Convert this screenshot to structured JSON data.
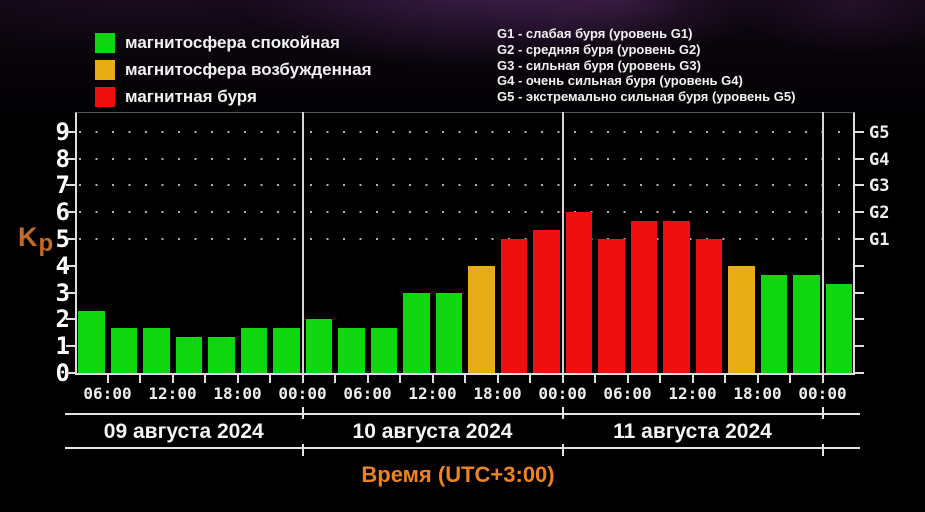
{
  "legend": {
    "items": [
      {
        "id": "calm",
        "label": "магнитосфера спокойная",
        "color": "#0fd60f"
      },
      {
        "id": "excited",
        "label": "магнитосфера возбужденная",
        "color": "#e8ac16"
      },
      {
        "id": "storm",
        "label": "магнитная буря",
        "color": "#ee1010"
      }
    ]
  },
  "storm_scale": {
    "lines": [
      "G1 - слабая буря (уровень G1)",
      "G2 - средняя буря (уровень G2)",
      "G3 - сильная буря (уровень G3)",
      "G4 - очень сильная буря (уровень G4)",
      "G5 - экстремально сильная буря (уровень G5)"
    ]
  },
  "chart_data": {
    "type": "bar",
    "ylabel": "Kp",
    "xlabel": "Время (UTC+3:00)",
    "ylim": [
      0,
      9.75
    ],
    "yticks": [
      0,
      1,
      2,
      3,
      4,
      5,
      6,
      7,
      8,
      9
    ],
    "right_axis": {
      "labels": [
        "G1",
        "G2",
        "G3",
        "G4",
        "G5"
      ],
      "levels": [
        5,
        6,
        7,
        8,
        9
      ]
    },
    "dotted_levels": [
      5,
      6,
      7,
      8,
      9
    ],
    "grid": "dotted-top-levels-only",
    "legend_position": "top-left",
    "bar_duration_hours": 3,
    "first_bar_start": "03:00",
    "time_tick_labels": [
      "06:00",
      "12:00",
      "18:00",
      "00:00",
      "06:00",
      "12:00",
      "18:00",
      "00:00",
      "06:00",
      "12:00",
      "18:00",
      "00:00"
    ],
    "state_colors": {
      "calm": "#0fd60f",
      "excited": "#e8ac16",
      "storm": "#ee1010"
    },
    "days": [
      {
        "date": "09 августа 2024",
        "bars": [
          {
            "start": "03:00",
            "value": 2.33,
            "state": "calm"
          },
          {
            "start": "06:00",
            "value": 1.67,
            "state": "calm"
          },
          {
            "start": "09:00",
            "value": 1.67,
            "state": "calm"
          },
          {
            "start": "12:00",
            "value": 1.33,
            "state": "calm"
          },
          {
            "start": "15:00",
            "value": 1.33,
            "state": "calm"
          },
          {
            "start": "18:00",
            "value": 1.67,
            "state": "calm"
          },
          {
            "start": "21:00",
            "value": 1.67,
            "state": "calm"
          }
        ]
      },
      {
        "date": "10 августа 2024",
        "bars": [
          {
            "start": "00:00",
            "value": 2.0,
            "state": "calm"
          },
          {
            "start": "03:00",
            "value": 1.67,
            "state": "calm"
          },
          {
            "start": "06:00",
            "value": 1.67,
            "state": "calm"
          },
          {
            "start": "09:00",
            "value": 3.0,
            "state": "calm"
          },
          {
            "start": "12:00",
            "value": 3.0,
            "state": "calm"
          },
          {
            "start": "15:00",
            "value": 4.0,
            "state": "excited"
          },
          {
            "start": "18:00",
            "value": 5.0,
            "state": "storm"
          },
          {
            "start": "21:00",
            "value": 5.33,
            "state": "storm"
          }
        ]
      },
      {
        "date": "11 августа 2024",
        "bars": [
          {
            "start": "00:00",
            "value": 6.0,
            "state": "storm"
          },
          {
            "start": "03:00",
            "value": 5.0,
            "state": "storm"
          },
          {
            "start": "06:00",
            "value": 5.67,
            "state": "storm"
          },
          {
            "start": "09:00",
            "value": 5.67,
            "state": "storm"
          },
          {
            "start": "12:00",
            "value": 5.0,
            "state": "storm"
          },
          {
            "start": "15:00",
            "value": 4.0,
            "state": "excited"
          },
          {
            "start": "18:00",
            "value": 3.67,
            "state": "calm"
          },
          {
            "start": "21:00",
            "value": 3.67,
            "state": "calm"
          }
        ]
      },
      {
        "date": "",
        "bars": [
          {
            "start": "00:00",
            "value": 3.33,
            "state": "calm"
          }
        ]
      }
    ]
  }
}
